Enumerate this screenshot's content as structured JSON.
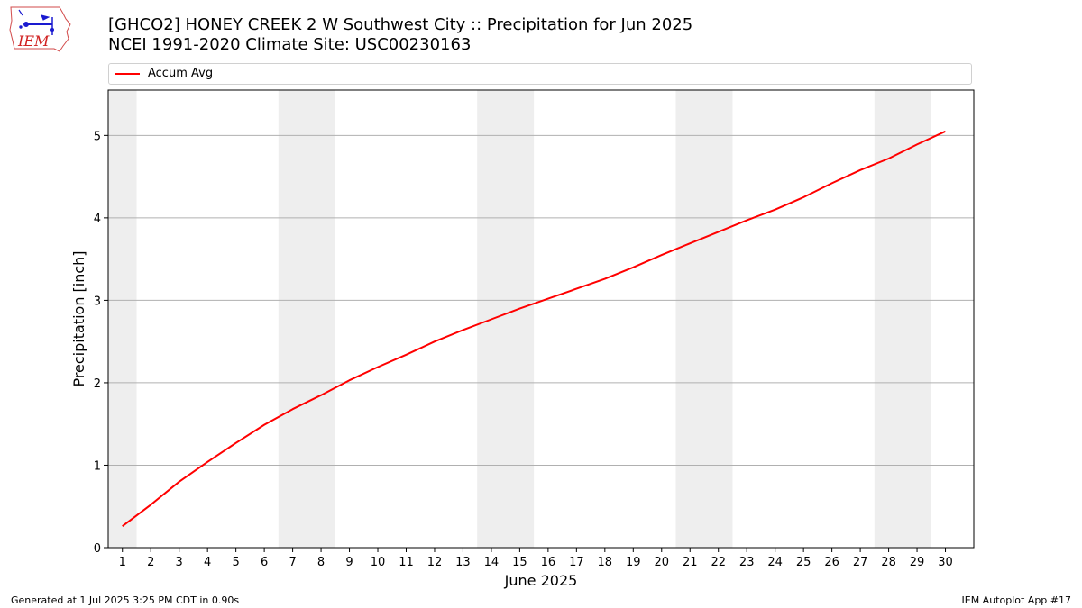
{
  "logo": {
    "text": "IEM"
  },
  "header": {
    "title_line1": "[GHCO2] HONEY CREEK 2 W Southwest City :: Precipitation for Jun 2025",
    "title_line2": "NCEI 1991-2020 Climate Site: USC00230163"
  },
  "footer": {
    "generated": "Generated at 1 Jul 2025 3:25 PM CDT in 0.90s",
    "app": "IEM Autoplot App #17"
  },
  "chart_data": {
    "type": "line",
    "title": "[GHCO2] HONEY CREEK 2 W Southwest City :: Precipitation for Jun 2025",
    "subtitle": "NCEI 1991-2020 Climate Site: USC00230163",
    "xlabel": "June 2025",
    "ylabel": "Precipitation [inch]",
    "xlim": [
      0.5,
      31.0
    ],
    "ylim": [
      0,
      5.55
    ],
    "x": [
      1,
      2,
      3,
      4,
      5,
      6,
      7,
      8,
      9,
      10,
      11,
      12,
      13,
      14,
      15,
      16,
      17,
      18,
      19,
      20,
      21,
      22,
      23,
      24,
      25,
      26,
      27,
      28,
      29,
      30
    ],
    "xtick_labels": [
      "1",
      "2",
      "3",
      "4",
      "5",
      "6",
      "7",
      "8",
      "9",
      "10",
      "11",
      "12",
      "13",
      "14",
      "15",
      "16",
      "17",
      "18",
      "19",
      "20",
      "21",
      "22",
      "23",
      "24",
      "25",
      "26",
      "27",
      "28",
      "29",
      "30"
    ],
    "yticks": [
      0,
      1,
      2,
      3,
      4,
      5
    ],
    "ytick_labels": [
      "0",
      "1",
      "2",
      "3",
      "4",
      "5"
    ],
    "grid": "horizontal",
    "legend_position": "top",
    "weekend_shading": [
      [
        0.5,
        1.5
      ],
      [
        6.5,
        8.5
      ],
      [
        13.5,
        15.5
      ],
      [
        20.5,
        22.5
      ],
      [
        27.5,
        29.5
      ]
    ],
    "shade_color": "#eeeeee",
    "series": [
      {
        "name": "Accum Avg",
        "color": "#ff0000",
        "values": [
          0.26,
          0.52,
          0.8,
          1.04,
          1.27,
          1.49,
          1.68,
          1.85,
          2.03,
          2.19,
          2.34,
          2.5,
          2.64,
          2.77,
          2.9,
          3.02,
          3.14,
          3.26,
          3.4,
          3.55,
          3.69,
          3.83,
          3.97,
          4.1,
          4.25,
          4.42,
          4.58,
          4.72,
          4.89,
          5.05
        ]
      }
    ]
  }
}
